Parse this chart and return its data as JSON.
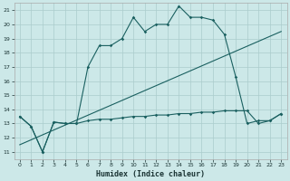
{
  "title": "",
  "xlabel": "Humidex (Indice chaleur)",
  "background_color": "#cce8e8",
  "grid_color": "#aacccc",
  "line_color": "#1a6060",
  "xlim": [
    -0.5,
    23.5
  ],
  "ylim": [
    10.5,
    21.5
  ],
  "xticks": [
    0,
    1,
    2,
    3,
    4,
    5,
    6,
    7,
    8,
    9,
    10,
    11,
    12,
    13,
    14,
    15,
    16,
    17,
    18,
    19,
    20,
    21,
    22,
    23
  ],
  "yticks": [
    11,
    12,
    13,
    14,
    15,
    16,
    17,
    18,
    19,
    20,
    21
  ],
  "line1_x": [
    0,
    1,
    2,
    3,
    4,
    5,
    6,
    7,
    8,
    9,
    10,
    11,
    12,
    13,
    14,
    15,
    16,
    17,
    18,
    19,
    20,
    21,
    22,
    23
  ],
  "line1_y": [
    13.5,
    12.8,
    11.0,
    13.1,
    13.0,
    13.0,
    13.2,
    13.3,
    13.3,
    13.4,
    13.5,
    13.5,
    13.6,
    13.6,
    13.7,
    13.7,
    13.8,
    13.8,
    13.9,
    13.9,
    13.9,
    13.0,
    13.2,
    13.7
  ],
  "line2_x": [
    0,
    1,
    2,
    3,
    4,
    5,
    6,
    7,
    8,
    9,
    10,
    11,
    12,
    13,
    14,
    15,
    16,
    17,
    18,
    19,
    20,
    21,
    22,
    23
  ],
  "line2_y": [
    13.5,
    12.8,
    11.0,
    13.1,
    13.0,
    13.0,
    17.0,
    18.5,
    18.5,
    19.0,
    20.5,
    19.5,
    20.0,
    20.0,
    21.3,
    20.5,
    20.5,
    20.3,
    19.3,
    16.3,
    13.0,
    13.2,
    13.2,
    13.7
  ],
  "line3_x": [
    0,
    23
  ],
  "line3_y": [
    11.5,
    19.5
  ]
}
